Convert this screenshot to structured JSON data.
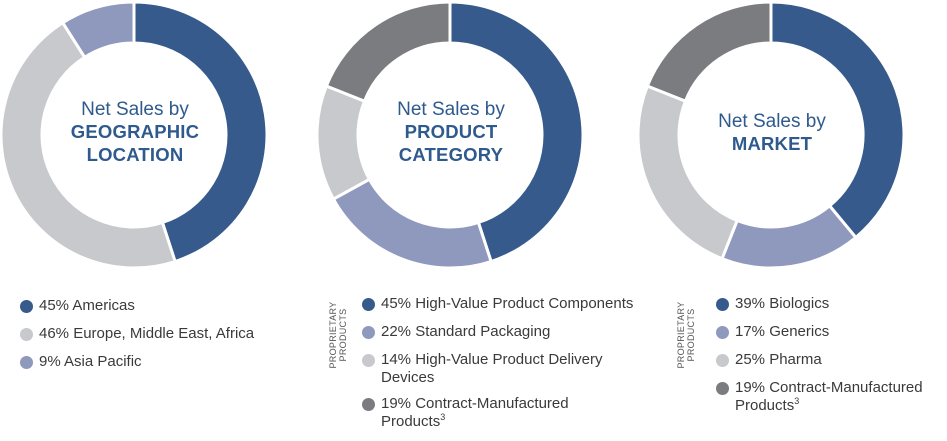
{
  "colors": {
    "navy": "#365a8b",
    "periwinkle": "#8e99bd",
    "light_gray": "#c7c9cc",
    "dark_gray": "#7b7c80",
    "title": "#2f5a8e"
  },
  "chart_data": [
    {
      "type": "pie",
      "donut": true,
      "title_line1": "Net Sales by",
      "title_line2a": "GEOGRAPHIC",
      "title_line2b": "LOCATION",
      "segments": [
        {
          "label": "45% Americas",
          "value": 45,
          "color": "#365a8b"
        },
        {
          "label": "46% Europe, Middle East, Africa",
          "value": 46,
          "color": "#c7c9cc"
        },
        {
          "label": "9% Asia Pacific",
          "value": 9,
          "color": "#8e99bd"
        }
      ]
    },
    {
      "type": "pie",
      "donut": true,
      "title_line1": "Net Sales by",
      "title_line2a": "PRODUCT",
      "title_line2b": "CATEGORY",
      "side_label": "PROPRIETARY PRODUCTS",
      "segments": [
        {
          "label": "45% High-Value Product Components",
          "value": 45,
          "color": "#365a8b"
        },
        {
          "label": "22% Standard Packaging",
          "value": 22,
          "color": "#8e99bd"
        },
        {
          "label_a": "14% High-Value Product Delivery",
          "label_b": "Devices",
          "value": 14,
          "color": "#c7c9cc"
        },
        {
          "label_a": "19% Contract-Manufactured",
          "label_b": "Products",
          "footnote": "3",
          "value": 19,
          "color": "#7b7c80"
        }
      ]
    },
    {
      "type": "pie",
      "donut": true,
      "title_line1": "Net Sales by",
      "title_line2a": "MARKET",
      "side_label": "PROPRIETARY PRODUCTS",
      "segments": [
        {
          "label": "39% Biologics",
          "value": 39,
          "color": "#365a8b"
        },
        {
          "label": "17% Generics",
          "value": 17,
          "color": "#8e99bd"
        },
        {
          "label": "25% Pharma",
          "value": 25,
          "color": "#c7c9cc"
        },
        {
          "label_a": "19% Contract-Manufactured",
          "label_b": "Products",
          "footnote": "3",
          "value": 19,
          "color": "#7b7c80"
        }
      ]
    }
  ]
}
